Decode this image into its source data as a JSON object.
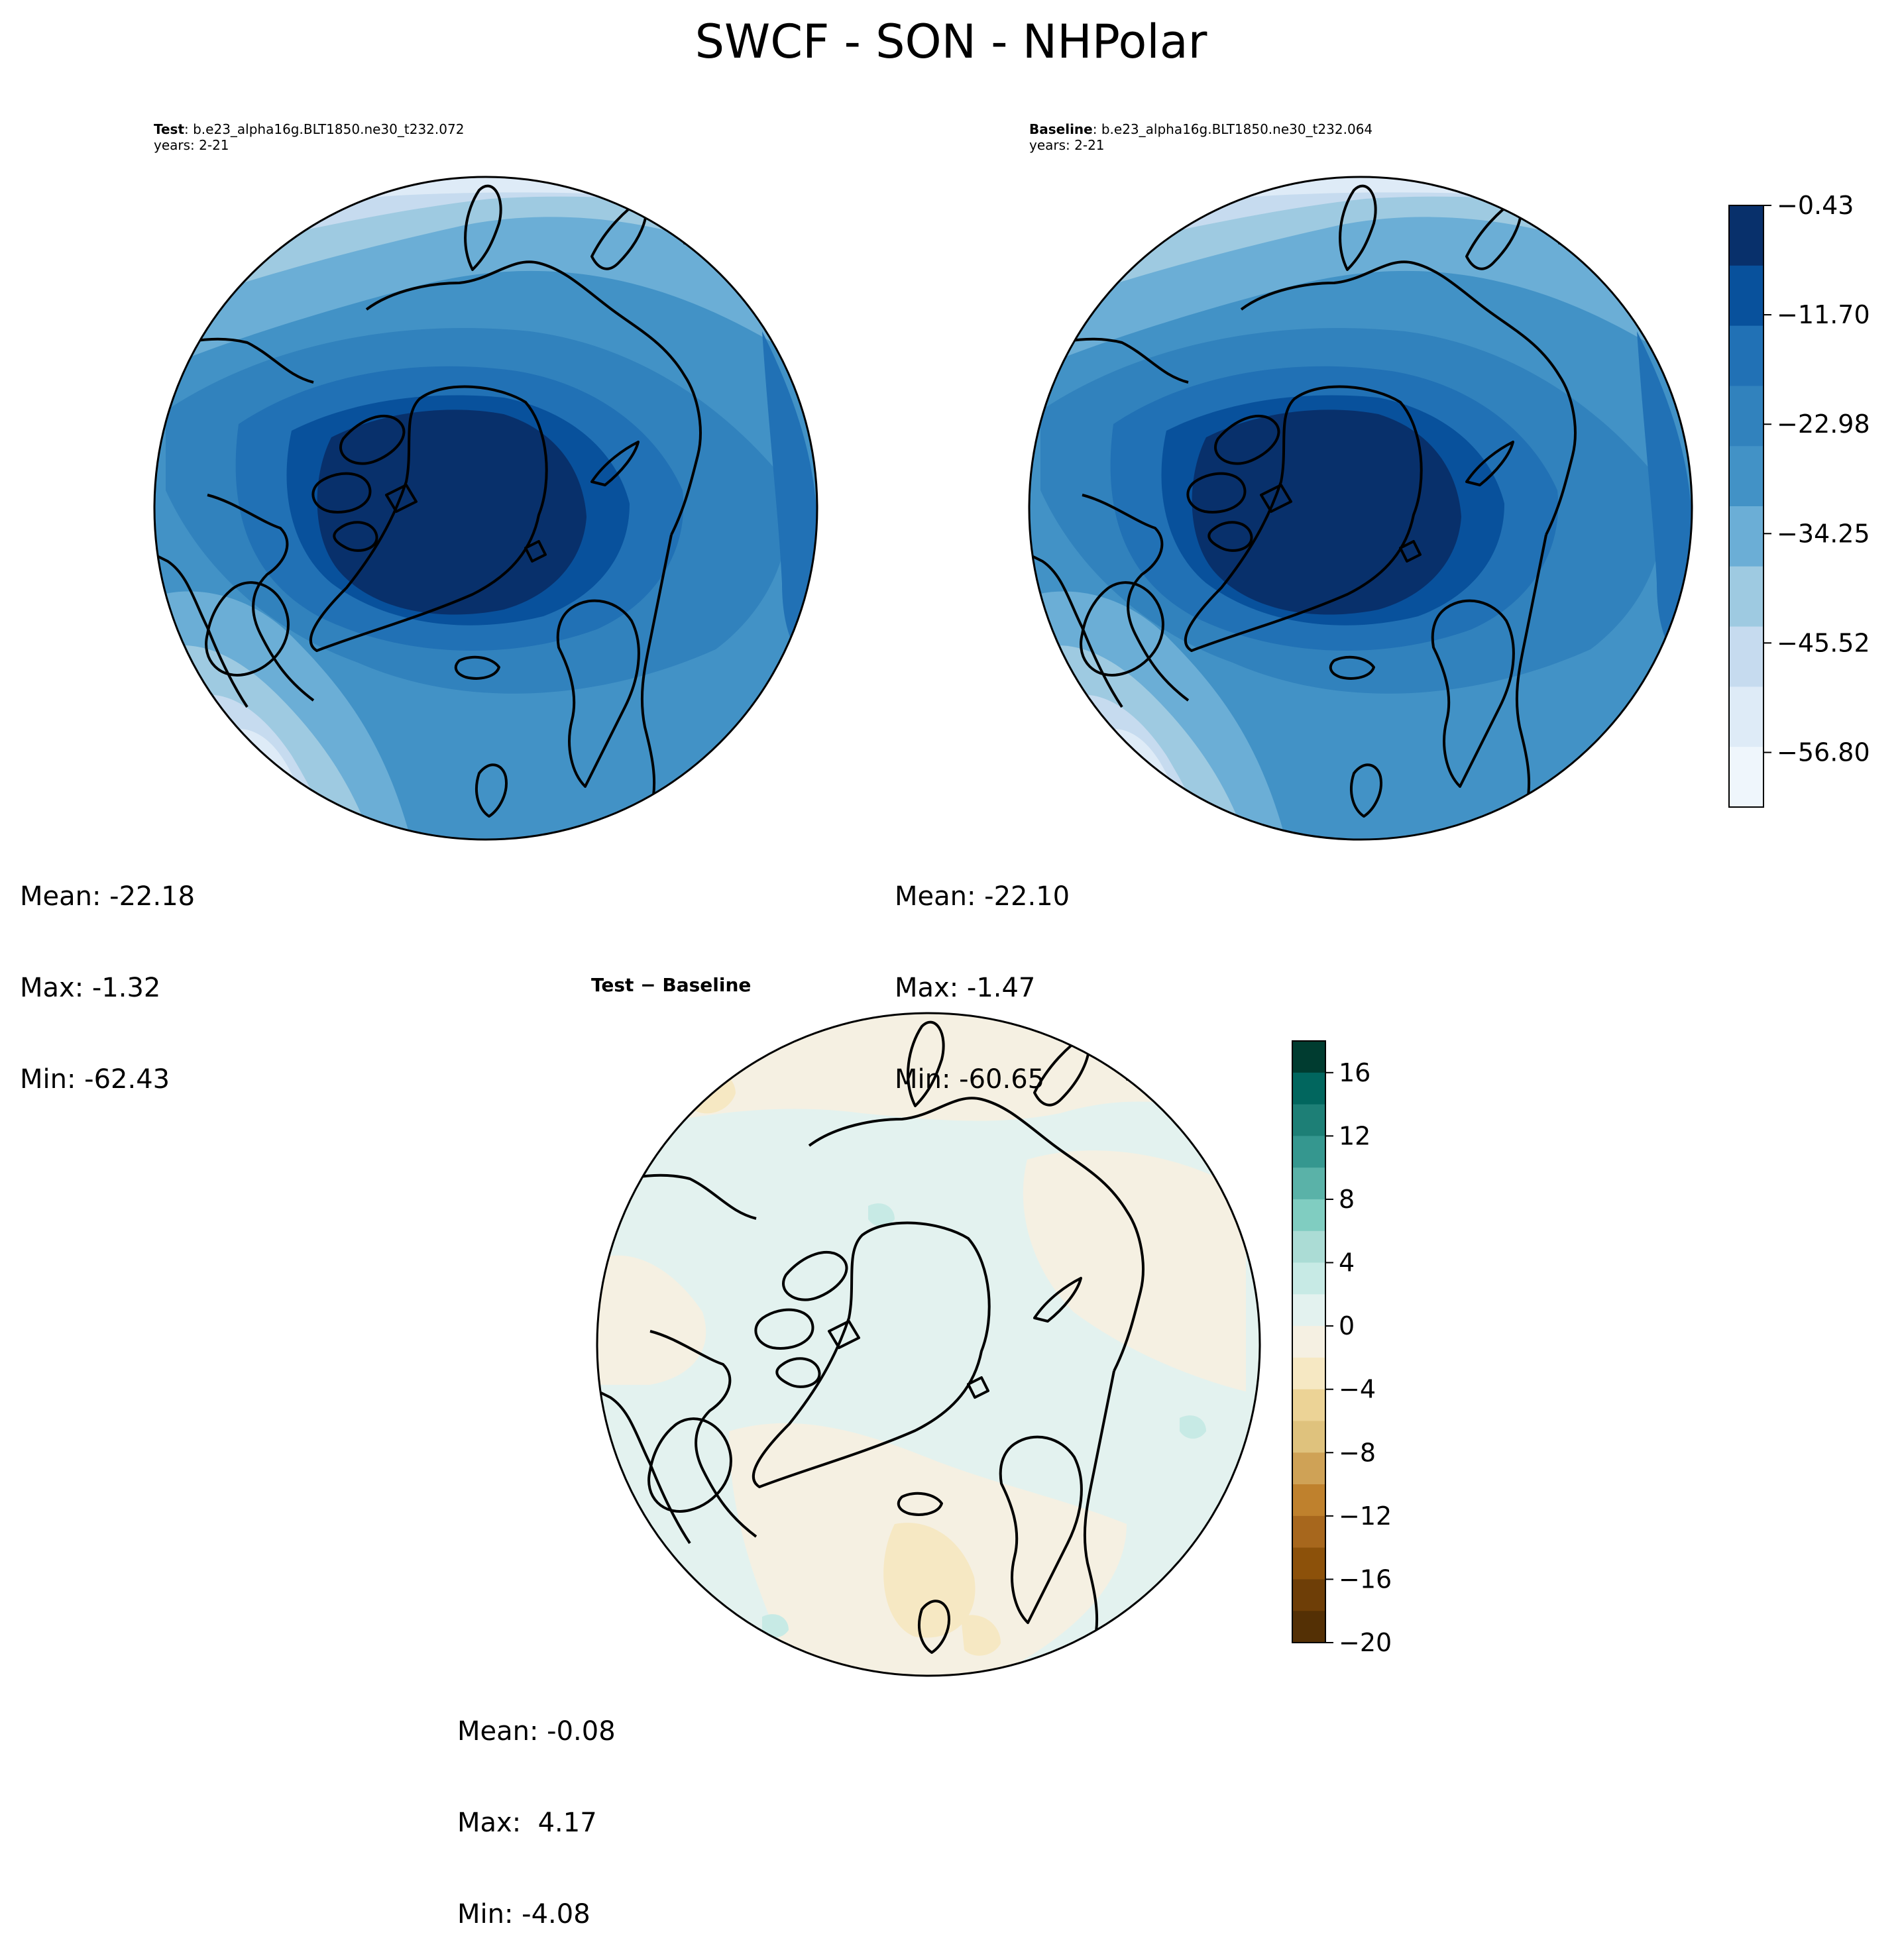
{
  "figure": {
    "title": "SWCF - SON - NHPolar"
  },
  "panels": {
    "test": {
      "label_bold": "Test",
      "label_rest": ": b.e23_alpha16g.BLT1850.ne30_t232.072",
      "years": "years: 2-21",
      "mean": "Mean: -22.18",
      "max": "Max: -1.32",
      "min": "Min: -62.43"
    },
    "baseline": {
      "label_bold": "Baseline",
      "label_rest": ": b.e23_alpha16g.BLT1850.ne30_t232.064",
      "years": "years: 2-21",
      "mean": "Mean: -22.10",
      "max": "Max: -1.47",
      "min": "Min: -60.65"
    },
    "diff": {
      "label": "Test − Baseline",
      "mean": "Mean: -0.08",
      "max": "Max:  4.17",
      "min": "Min: -4.08"
    }
  },
  "colorbars": {
    "main": {
      "ticks": [
        "−0.43",
        "−11.70",
        "−22.98",
        "−34.25",
        "−45.52",
        "−56.80"
      ],
      "levels": [
        -0.43,
        -62.43
      ],
      "colors_top_to_bottom": [
        "#08306b",
        "#08519c",
        "#2171b5",
        "#3182bd",
        "#4292c6",
        "#6baed6",
        "#9ecae1",
        "#c6dbef",
        "#deebf7",
        "#eff6fc"
      ]
    },
    "diff": {
      "ticks": [
        "16",
        "12",
        "8",
        "4",
        "0",
        "−4",
        "−8",
        "−12",
        "−16",
        "−20"
      ],
      "tick_values": [
        16,
        12,
        8,
        4,
        0,
        -4,
        -8,
        -12,
        -16,
        -20
      ],
      "range": [
        -20,
        18
      ],
      "colors_top_to_bottom": [
        "#003c30",
        "#01665e",
        "#1d7f76",
        "#35978f",
        "#5ab2a8",
        "#80cdc1",
        "#abdcd5",
        "#c7eae5",
        "#e3f2ef",
        "#f5f0e2",
        "#f6e8c3",
        "#ecd396",
        "#dfc27d",
        "#cfa256",
        "#bf812d",
        "#a7671d",
        "#8c510a",
        "#6e3e07",
        "#543005"
      ]
    }
  }
}
